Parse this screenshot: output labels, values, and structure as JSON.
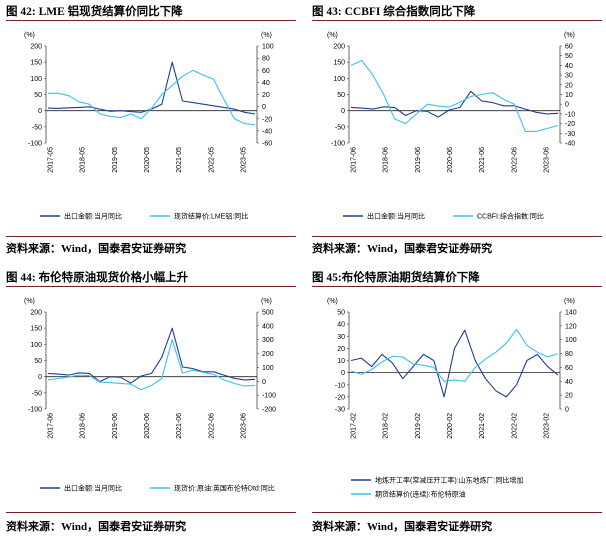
{
  "colors": {
    "dark": "#1f3f94",
    "light": "#37c3ee",
    "rule": "#7a1f1f"
  },
  "figures": [
    {
      "title": "图 42: LME 铝现货结算价同比下降",
      "source": "资料来源：Wind，国泰君安证券研究",
      "left_unit": "(%)",
      "right_unit": "(%)",
      "left_ticks": [
        "200",
        "150",
        "100",
        "50",
        "0",
        "-50",
        "-100"
      ],
      "right_ticks": [
        "100",
        "80",
        "60",
        "40",
        "20",
        "0",
        "-20",
        "-40",
        "-60"
      ],
      "x_ticks": [
        "2017-05",
        "2018-05",
        "2019-05",
        "2020-05",
        "2021-05",
        "2022-05",
        "2023-05"
      ],
      "legend": [
        "出口金额:当月同比",
        "现货结算价:LME铝:同比"
      ]
    },
    {
      "title": "图 43: CCBFI 综合指数同比下降",
      "source": "资料来源：Wind，国泰君安证券研究",
      "left_unit": "(%)",
      "right_unit": "(%)",
      "left_ticks": [
        "200",
        "150",
        "100",
        "50",
        "0",
        "-50",
        "-100"
      ],
      "right_ticks": [
        "60",
        "50",
        "40",
        "30",
        "20",
        "10",
        "0",
        "-10",
        "-20",
        "-30",
        "-40"
      ],
      "x_ticks": [
        "2017-06",
        "2018-06",
        "2019-06",
        "2020-06",
        "2021-06",
        "2022-06",
        "2023-06"
      ],
      "legend": [
        "出口金额:当月同比",
        "CCBFI:综合指数:同比"
      ]
    },
    {
      "title": "图 44: 布伦特原油现货价格小幅上升",
      "source": "资料来源：Wind，国泰君安证券研究",
      "left_unit": "(%)",
      "right_unit": "(%)",
      "left_ticks": [
        "200",
        "150",
        "100",
        "50",
        "0",
        "-50",
        "-100"
      ],
      "right_ticks": [
        "500",
        "400",
        "300",
        "200",
        "100",
        "0",
        "-100",
        "-200"
      ],
      "x_ticks": [
        "2017-06",
        "2018-06",
        "2019-06",
        "2020-06",
        "2021-06",
        "2022-06",
        "2023-06"
      ],
      "legend": [
        "出口金额:当月同比",
        "现货价:原油:英国布伦特Dtd:同比"
      ]
    },
    {
      "title": "图 45:布伦特原油期货结算价下降",
      "source": "资料来源：Wind，国泰君安证券研究",
      "left_unit": "(%)",
      "right_unit": "(%)",
      "left_ticks": [
        "50",
        "40",
        "30",
        "20",
        "10",
        "0",
        "-10",
        "-20",
        "-30"
      ],
      "right_ticks": [
        "140",
        "120",
        "100",
        "80",
        "60",
        "40",
        "20",
        "0"
      ],
      "x_ticks": [
        "2017-02",
        "2018-02",
        "2019-02",
        "2020-02",
        "2021-02",
        "2022-02",
        "2023-02"
      ],
      "legend": [
        "地炼开工率(常减压开工率):山东地炼厂:同比增加",
        "期货结算价(连续):布伦特原油"
      ]
    }
  ],
  "chart_data": [
    {
      "type": "line",
      "title": "LME 铝现货结算价同比下降",
      "ylim_left": [
        -100,
        200
      ],
      "ylim_right": [
        -60,
        100
      ],
      "x": [
        "2017-05",
        "2017-09",
        "2018-01",
        "2018-05",
        "2018-09",
        "2019-01",
        "2019-05",
        "2019-09",
        "2020-01",
        "2020-05",
        "2020-09",
        "2021-01",
        "2021-03",
        "2021-05",
        "2021-09",
        "2022-01",
        "2022-05",
        "2022-09",
        "2023-01",
        "2023-05",
        "2023-07"
      ],
      "series": [
        {
          "name": "出口金额:当月同比",
          "axis": "left",
          "values": [
            8,
            7,
            9,
            10,
            12,
            5,
            -2,
            0,
            -3,
            -5,
            5,
            20,
            150,
            30,
            25,
            20,
            15,
            10,
            5,
            -5,
            -10
          ]
        },
        {
          "name": "现货结算价:LME铝:同比",
          "axis": "right",
          "values": [
            22,
            22,
            18,
            8,
            4,
            -12,
            -16,
            -18,
            -12,
            -20,
            -3,
            20,
            35,
            50,
            60,
            52,
            45,
            12,
            -20,
            -28,
            -30
          ]
        }
      ]
    },
    {
      "type": "line",
      "title": "CCBFI 综合指数同比下降",
      "ylim_left": [
        -100,
        200
      ],
      "ylim_right": [
        -40,
        60
      ],
      "x": [
        "2017-06",
        "2017-10",
        "2018-02",
        "2018-06",
        "2018-10",
        "2019-02",
        "2019-06",
        "2019-10",
        "2020-02",
        "2020-06",
        "2020-10",
        "2021-02",
        "2021-06",
        "2021-10",
        "2022-02",
        "2022-06",
        "2022-10",
        "2023-02",
        "2023-06",
        "2023-08"
      ],
      "series": [
        {
          "name": "出口金额:当月同比",
          "axis": "left",
          "values": [
            10,
            8,
            5,
            12,
            10,
            -15,
            0,
            -2,
            -20,
            2,
            10,
            60,
            30,
            25,
            15,
            15,
            5,
            -5,
            -10,
            -8
          ]
        },
        {
          "name": "CCBFI:综合指数:同比",
          "axis": "right",
          "values": [
            40,
            45,
            30,
            10,
            -15,
            -20,
            -10,
            0,
            -2,
            -3,
            2,
            8,
            10,
            12,
            5,
            0,
            -28,
            -28,
            -25,
            -22
          ]
        }
      ]
    },
    {
      "type": "line",
      "title": "布伦特原油现货价格小幅上升",
      "ylim_left": [
        -100,
        200
      ],
      "ylim_right": [
        -200,
        500
      ],
      "x": [
        "2017-06",
        "2017-10",
        "2018-02",
        "2018-06",
        "2018-10",
        "2019-02",
        "2019-06",
        "2019-10",
        "2020-02",
        "2020-06",
        "2020-10",
        "2021-02",
        "2021-04",
        "2021-06",
        "2021-10",
        "2022-02",
        "2022-06",
        "2022-10",
        "2023-02",
        "2023-06",
        "2023-08"
      ],
      "series": [
        {
          "name": "出口金额:当月同比",
          "axis": "left",
          "values": [
            10,
            8,
            5,
            12,
            10,
            -15,
            0,
            -2,
            -20,
            2,
            10,
            60,
            150,
            30,
            25,
            15,
            15,
            5,
            -5,
            -10,
            -8
          ]
        },
        {
          "name": "现货价:原油:英国布伦特Dtd:同比",
          "axis": "right",
          "values": [
            10,
            20,
            30,
            45,
            40,
            -5,
            -10,
            -15,
            -20,
            -60,
            -30,
            20,
            300,
            60,
            80,
            65,
            50,
            10,
            -15,
            -35,
            -30
          ]
        }
      ]
    },
    {
      "type": "line",
      "title": "布伦特原油期货结算价下降",
      "ylim_left": [
        -30,
        50
      ],
      "ylim_right": [
        0,
        140
      ],
      "x": [
        "2017-02",
        "2017-06",
        "2017-10",
        "2018-02",
        "2018-06",
        "2018-10",
        "2019-02",
        "2019-06",
        "2019-10",
        "2020-02",
        "2020-06",
        "2020-10",
        "2021-02",
        "2021-06",
        "2021-10",
        "2022-02",
        "2022-06",
        "2022-10",
        "2023-02",
        "2023-06",
        "2023-08"
      ],
      "series": [
        {
          "name": "地炼开工率(常减压开工率):山东地炼厂:同比增加",
          "axis": "left",
          "values": [
            10,
            12,
            5,
            15,
            8,
            -5,
            5,
            15,
            10,
            -20,
            20,
            35,
            10,
            -5,
            -15,
            -20,
            -10,
            10,
            15,
            5,
            -2
          ]
        },
        {
          "name": "期货结算价(连续):布伦特原油",
          "axis": "right",
          "values": [
            55,
            50,
            57,
            68,
            76,
            75,
            65,
            63,
            60,
            40,
            42,
            40,
            60,
            72,
            82,
            95,
            115,
            92,
            82,
            75,
            80
          ]
        }
      ]
    }
  ]
}
